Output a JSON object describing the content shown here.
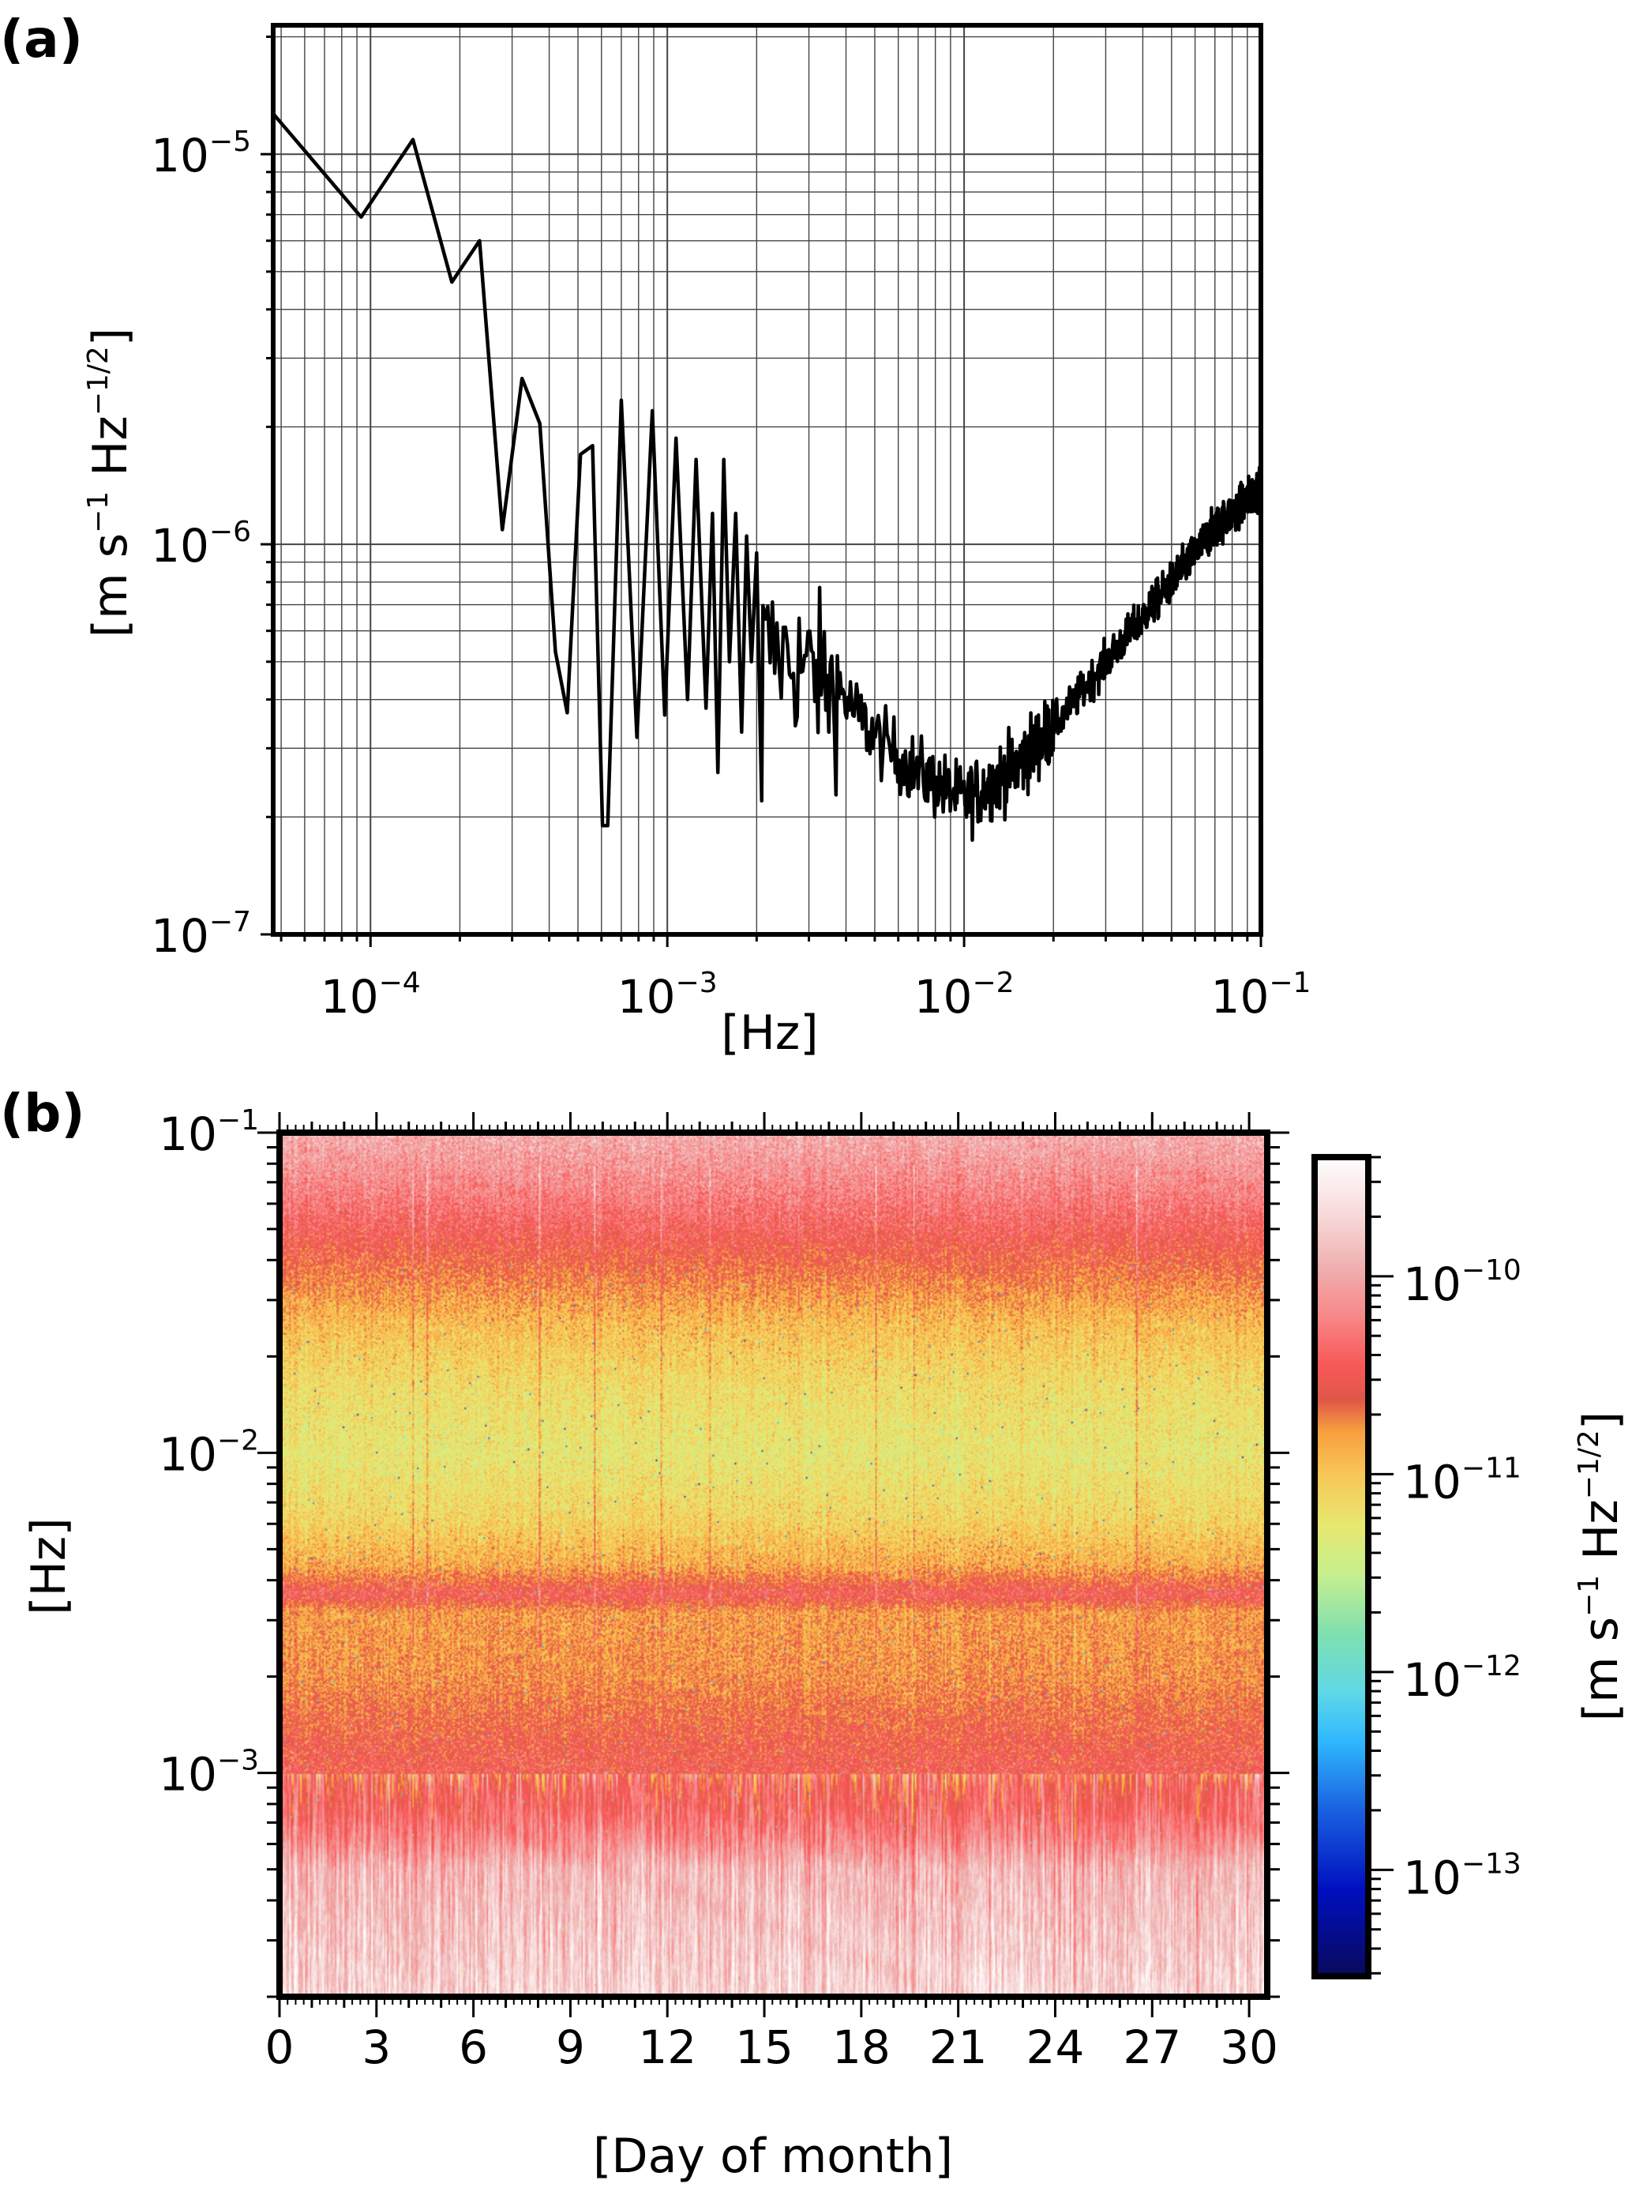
{
  "chart_data": [
    {
      "panel_label": "(a)",
      "type": "line",
      "xscale": "log",
      "yscale": "log",
      "xlabel": "[Hz]",
      "ylabel_parts": [
        "[m s",
        "−1",
        " Hz",
        "−1/2",
        "]"
      ],
      "xlim": [
        4.7e-05,
        0.1
      ],
      "ylim": [
        1e-07,
        2.14e-05
      ],
      "grid": true,
      "xticks": [
        {
          "base": "10",
          "exp": "−4",
          "value": 0.0001
        },
        {
          "base": "10",
          "exp": "−3",
          "value": 0.001
        },
        {
          "base": "10",
          "exp": "−2",
          "value": 0.01
        },
        {
          "base": "10",
          "exp": "−1",
          "value": 0.1
        }
      ],
      "yticks": [
        {
          "base": "10",
          "exp": "−5",
          "value": 1e-05
        },
        {
          "base": "10",
          "exp": "−6",
          "value": 1e-06
        },
        {
          "base": "10",
          "exp": "−7",
          "value": 1e-07
        }
      ],
      "series_color": "#000000",
      "points": [
        [
          4.7e-05,
          1.27e-05
        ],
        [
          9.3e-05,
          6.9e-06
        ],
        [
          0.000139,
          1.09e-05
        ],
        [
          0.000188,
          4.7e-06
        ],
        [
          0.000233,
          6e-06
        ],
        [
          0.000278,
          1.09e-06
        ],
        [
          0.000324,
          2.66e-06
        ],
        [
          0.000372,
          2.04e-06
        ],
        [
          0.00042,
          5.3e-07
        ],
        [
          0.00046,
          3.7e-07
        ],
        [
          0.00051,
          1.7e-06
        ],
        [
          0.00056,
          1.79e-06
        ],
        [
          0.000605,
          1.9e-07
        ],
        [
          0.00063,
          1.9e-07
        ],
        [
          0.0007,
          2.34e-06
        ],
        [
          0.00079,
          3.2e-07
        ],
        [
          0.00089,
          2.2e-06
        ],
        [
          0.00098,
          3.65e-07
        ],
        [
          0.00107,
          1.87e-06
        ],
        [
          0.00117,
          4e-07
        ],
        [
          0.00125,
          1.65e-06
        ],
        [
          0.00135,
          3.8e-07
        ],
        [
          0.00142,
          1.2e-06
        ],
        [
          0.00148,
          2.6e-07
        ],
        [
          0.00155,
          1.65e-06
        ],
        [
          0.00162,
          5e-07
        ],
        [
          0.0017,
          1.2e-06
        ],
        [
          0.00178,
          3.3e-07
        ],
        [
          0.00185,
          1.05e-06
        ],
        [
          0.00192,
          5e-07
        ],
        [
          0.002,
          9.5e-07
        ],
        [
          0.00208,
          2.2e-07
        ]
      ],
      "noisy_baseline": [
        [
          0.0021,
          5.5e-07
        ],
        [
          0.003,
          4.8e-07
        ],
        [
          0.004,
          4e-07
        ],
        [
          0.005,
          3.2e-07
        ],
        [
          0.007,
          2.6e-07
        ],
        [
          0.01,
          2.2e-07
        ],
        [
          0.015,
          2.7e-07
        ],
        [
          0.02,
          3.4e-07
        ],
        [
          0.03,
          5e-07
        ],
        [
          0.05,
          8e-07
        ],
        [
          0.07,
          1.1e-06
        ],
        [
          0.1,
          1.4e-06
        ]
      ]
    },
    {
      "panel_label": "(b)",
      "type": "heatmap",
      "xlabel": "[Day of month]",
      "ylabel": "[Hz]",
      "yscale": "log",
      "xlim": [
        0,
        30.56
      ],
      "ylim": [
        0.0002,
        0.1
      ],
      "xticks": [
        "0",
        "3",
        "6",
        "9",
        "12",
        "15",
        "18",
        "21",
        "24",
        "27",
        "30"
      ],
      "yticks": [
        {
          "base": "10",
          "exp": "−1",
          "value": 0.1
        },
        {
          "base": "10",
          "exp": "−2",
          "value": 0.01
        },
        {
          "base": "10",
          "exp": "−3",
          "value": 0.001
        }
      ],
      "colorbar": {
        "scale": "log",
        "range": [
          2.9e-14,
          4e-10
        ],
        "label_parts": [
          "[m s",
          "−1",
          " Hz",
          "−1/2",
          "]"
        ],
        "ticks": [
          {
            "base": "10",
            "exp": "−10",
            "value": 1e-10
          },
          {
            "base": "10",
            "exp": "−11",
            "value": 1e-11
          },
          {
            "base": "10",
            "exp": "−12",
            "value": 1e-12
          },
          {
            "base": "10",
            "exp": "−13",
            "value": 1e-13
          }
        ],
        "colormap": [
          [
            -13.54,
            "#0a0a5a"
          ],
          [
            -13.1,
            "#0010c0"
          ],
          [
            -12.7,
            "#1a60e0"
          ],
          [
            -12.35,
            "#30b8ff"
          ],
          [
            -12.1,
            "#60d8e8"
          ],
          [
            -11.8,
            "#80e0b0"
          ],
          [
            -11.5,
            "#c8f090"
          ],
          [
            -11.25,
            "#e8e870"
          ],
          [
            -11.0,
            "#f8c858"
          ],
          [
            -10.78,
            "#f8a040"
          ],
          [
            -10.62,
            "#e05848"
          ],
          [
            -10.45,
            "#f85858"
          ],
          [
            -10.2,
            "#f88888"
          ],
          [
            -9.95,
            "#f0b0b0"
          ],
          [
            -9.7,
            "#f8d8d8"
          ],
          [
            -9.39,
            "#ffffff"
          ]
        ]
      },
      "mean_log_amplitude_profile": [
        [
          -1.0,
          -9.95
        ],
        [
          -1.2,
          -10.25
        ],
        [
          -1.4,
          -10.6
        ],
        [
          -1.6,
          -10.95
        ],
        [
          -1.8,
          -11.15
        ],
        [
          -2.0,
          -11.25
        ],
        [
          -2.2,
          -11.1
        ],
        [
          -2.35,
          -10.85
        ],
        [
          -2.44,
          -10.45
        ],
        [
          -2.5,
          -10.8
        ],
        [
          -2.7,
          -10.75
        ],
        [
          -2.9,
          -10.55
        ],
        [
          -3.1,
          -10.4
        ],
        [
          -3.2,
          -10.2
        ],
        [
          -3.3,
          -9.9
        ],
        [
          -3.7,
          -9.7
        ]
      ]
    }
  ]
}
